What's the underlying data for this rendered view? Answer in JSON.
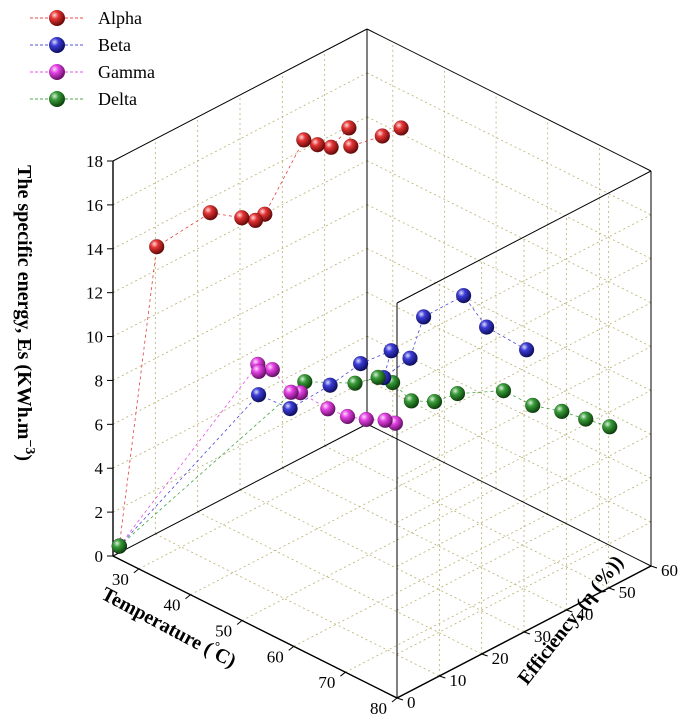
{
  "chart_data": {
    "type": "scatter3d",
    "axes": {
      "x": {
        "label_text": "Temperature (",
        "label_unit": "C",
        "label_close": ")",
        "range": [
          25,
          80
        ],
        "ticks": [
          "30",
          "40",
          "50",
          "60",
          "70",
          "80"
        ]
      },
      "y": {
        "label_text": "Efficiency, (η (%))",
        "range": [
          0,
          60
        ],
        "ticks": [
          "0",
          "10",
          "20",
          "30",
          "40",
          "50",
          "60"
        ]
      },
      "z": {
        "label_text": "The specific energy, Es (KWh.m",
        "label_exp": "−3",
        "label_close": ")",
        "range": [
          0,
          18
        ],
        "ticks": [
          "0",
          "2",
          "4",
          "6",
          "8",
          "10",
          "12",
          "14",
          "16",
          "18"
        ]
      }
    },
    "grid": true,
    "legend_position": "top-left",
    "series": [
      {
        "name": "Alpha",
        "color": "#e01010",
        "points": [
          [
            25,
            1.5,
            0.3
          ],
          [
            31,
            3,
            14.5
          ],
          [
            34,
            12,
            15.5
          ],
          [
            36,
            17,
            15
          ],
          [
            37,
            19,
            14.8
          ],
          [
            38,
            20,
            15.1
          ],
          [
            39,
            28,
            17.8
          ],
          [
            40,
            30,
            17.5
          ],
          [
            41,
            32,
            17.3
          ],
          [
            42,
            35,
            18
          ],
          [
            44,
            33,
            17.6
          ],
          [
            46,
            38,
            17.8
          ],
          [
            48,
            40,
            18.2
          ]
        ]
      },
      {
        "name": "Beta",
        "color": "#1a1ad0",
        "points": [
          [
            25,
            1.5,
            0.3
          ],
          [
            45,
            10,
            8.7
          ],
          [
            47,
            15,
            7.8
          ],
          [
            49,
            22,
            8.4
          ],
          [
            50,
            28,
            8.9
          ],
          [
            51,
            34,
            9.0
          ],
          [
            52,
            31,
            8.2
          ],
          [
            53,
            36,
            8.7
          ],
          [
            54,
            38,
            10.5
          ],
          [
            56,
            45,
            11.0
          ],
          [
            58,
            48,
            9.5
          ],
          [
            60,
            55,
            8.0
          ]
        ]
      },
      {
        "name": "Gamma",
        "color": "#e020e0",
        "points": [
          [
            25,
            1.5,
            0.3
          ],
          [
            35,
            22,
            7.7
          ],
          [
            36,
            21,
            7.6
          ],
          [
            37,
            23,
            7.6
          ],
          [
            39,
            25,
            6.6
          ],
          [
            40,
            26,
            6.6
          ],
          [
            42,
            30,
            5.7
          ],
          [
            45,
            31,
            5.6
          ],
          [
            47,
            33,
            5.5
          ],
          [
            49,
            35,
            5.5
          ],
          [
            51,
            35,
            5.6
          ]
        ]
      },
      {
        "name": "Delta",
        "color": "#168a16",
        "points": [
          [
            25,
            1.5,
            0.3
          ],
          [
            40,
            27,
            7.0
          ],
          [
            44,
            34,
            6.7
          ],
          [
            46,
            37,
            6.9
          ],
          [
            48,
            38,
            6.8
          ],
          [
            50,
            40,
            6.0
          ],
          [
            52,
            43,
            5.9
          ],
          [
            54,
            46,
            6.2
          ],
          [
            58,
            52,
            6.2
          ],
          [
            62,
            54,
            5.8
          ],
          [
            66,
            56,
            5.8
          ],
          [
            69,
            58,
            5.6
          ],
          [
            72,
            60,
            5.4
          ]
        ]
      }
    ]
  }
}
